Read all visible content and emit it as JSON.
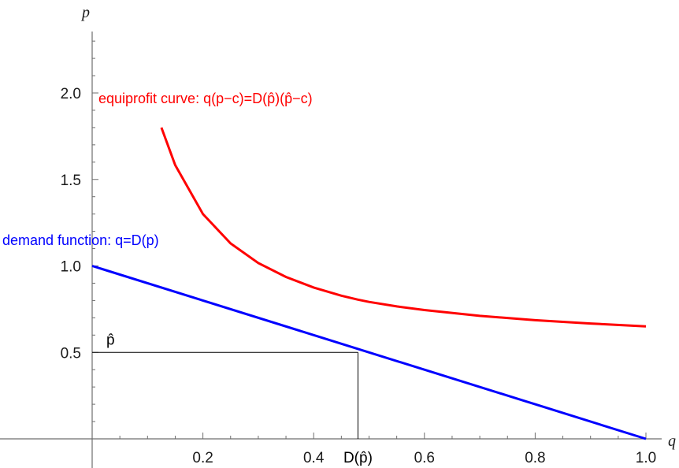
{
  "chart_data": {
    "type": "line",
    "title": "",
    "xlabel": "q",
    "ylabel": "p",
    "xlim": [
      0,
      1.0
    ],
    "ylim": [
      0,
      2.35
    ],
    "x_ticks": [
      0.2,
      0.4,
      0.6,
      0.8,
      1.0
    ],
    "x_tick_labels": [
      "0.2",
      "0.4",
      "0.6",
      "0.8",
      "1.0"
    ],
    "y_ticks": [
      0.5,
      1.0,
      1.5,
      2.0
    ],
    "y_tick_labels": [
      "0.5",
      "1.0",
      "1.5",
      "2.0"
    ],
    "grid": false,
    "series": [
      {
        "name": "demand function: q=D(p)",
        "color": "#0000ff",
        "x": [
          0,
          0.2,
          0.4,
          0.6,
          0.8,
          1.0
        ],
        "y": [
          1.0,
          0.8,
          0.6,
          0.4,
          0.2,
          0.0
        ]
      },
      {
        "name": "equiprofit curve: q(p−c)=D(p̂)(p̂−c)",
        "color": "#ff0000",
        "x": [
          0.125,
          0.15,
          0.2,
          0.25,
          0.3,
          0.35,
          0.4,
          0.45,
          0.48,
          0.5,
          0.55,
          0.6,
          0.7,
          0.8,
          0.9,
          1.0
        ],
        "y": [
          1.8,
          1.583,
          1.3,
          1.13,
          1.017,
          0.936,
          0.875,
          0.828,
          0.805,
          0.792,
          0.766,
          0.745,
          0.711,
          0.686,
          0.667,
          0.65
        ]
      }
    ],
    "annotations": [
      {
        "text": "p̂",
        "axis": "y",
        "value": 0.5
      },
      {
        "text": "D(p̂)",
        "axis": "x",
        "value": 0.48
      }
    ],
    "reference_lines": {
      "p_hat": 0.5,
      "D_p_hat": 0.48
    }
  }
}
